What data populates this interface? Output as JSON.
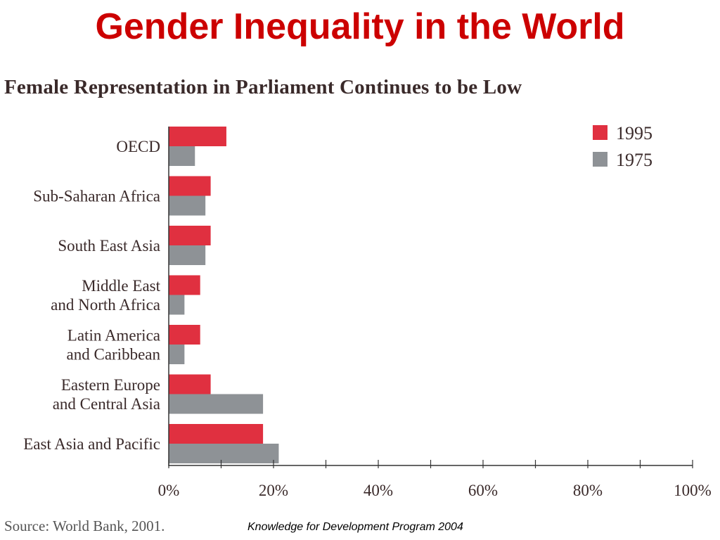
{
  "slide": {
    "title": "Gender Inequality in the World",
    "source": "Source: World Bank, 2001.",
    "footer": "Knowledge for Development Program 2004"
  },
  "colors": {
    "series_1995": "#e03040",
    "series_1975": "#8e9296",
    "title": "#cc0000",
    "axis": "#333333"
  },
  "chart_data": {
    "type": "bar",
    "orientation": "horizontal",
    "title": "Female Representation in Parliament Continues to be Low",
    "categories": [
      [
        "OECD"
      ],
      [
        "Sub-Saharan Africa"
      ],
      [
        "South East Asia"
      ],
      [
        "Middle East",
        "and North Africa"
      ],
      [
        "Latin America",
        "and Caribbean"
      ],
      [
        "Eastern Europe",
        "and Central Asia"
      ],
      [
        "East Asia and Pacific"
      ]
    ],
    "series": [
      {
        "name": "1995",
        "values": [
          11,
          8,
          8,
          6,
          6,
          8,
          18
        ]
      },
      {
        "name": "1975",
        "values": [
          5,
          7,
          7,
          3,
          3,
          18,
          21
        ]
      }
    ],
    "xlim": [
      0,
      100
    ],
    "x_ticks": [
      0,
      20,
      40,
      60,
      80,
      100
    ],
    "x_tick_labels": [
      "0%",
      "20%",
      "40%",
      "60%",
      "80%",
      "100%"
    ],
    "x_minor_step": 10,
    "legend_position": "top-right",
    "grid": false
  }
}
